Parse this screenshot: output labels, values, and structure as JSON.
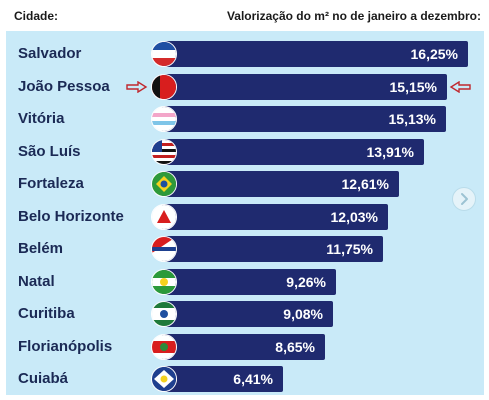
{
  "header": {
    "city_label": "Cidade:",
    "value_label": "Valorização do m² no de janeiro a dezembro:"
  },
  "colors": {
    "bar": "#1f2a6f",
    "panel": "#c9eaf8",
    "text": "#1b2a55",
    "value_text": "#ffffff",
    "highlight_arrow": "#c0272d"
  },
  "highlight": {
    "city": "João Pessoa",
    "marker": "red outline arrows on both sides"
  },
  "next_button_icon": "chevron-right-icon",
  "chart_data": {
    "type": "bar",
    "orientation": "horizontal",
    "categories": [
      "Salvador",
      "João Pessoa",
      "Vitória",
      "São Luís",
      "Fortaleza",
      "Belo Horizonte",
      "Belém",
      "Natal",
      "Curitiba",
      "Florianópolis",
      "Cuiabá"
    ],
    "values": [
      16.25,
      15.15,
      15.13,
      13.91,
      12.61,
      12.03,
      11.75,
      9.26,
      9.08,
      8.65,
      6.41
    ],
    "value_labels": [
      "16,25%",
      "15,15%",
      "15,13%",
      "13,91%",
      "12,61%",
      "12,03%",
      "11,75%",
      "9,26%",
      "9,08%",
      "8,65%",
      "6,41%"
    ],
    "unit": "%",
    "title": "",
    "xlabel": "",
    "ylabel": "",
    "grid": false,
    "legend": "none"
  }
}
